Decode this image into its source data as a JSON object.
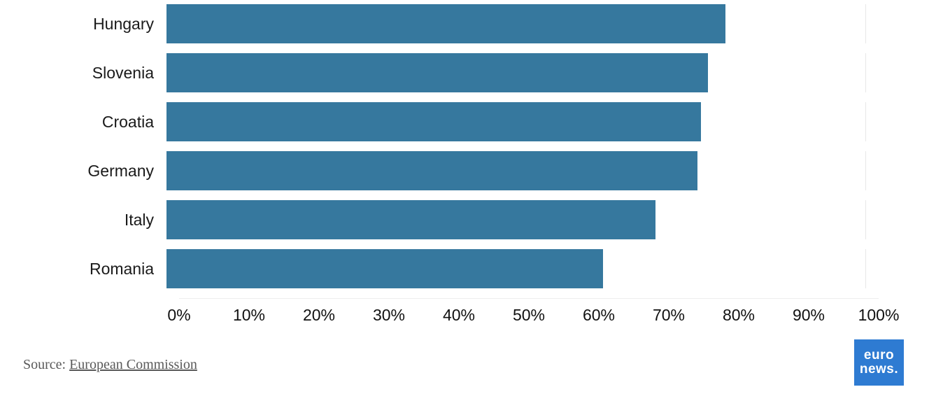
{
  "chart_data": {
    "type": "bar",
    "orientation": "horizontal",
    "title": "",
    "xlabel": "",
    "ylabel": "",
    "categories": [
      "Hungary",
      "Slovenia",
      "Croatia",
      "Germany",
      "Italy",
      "Romania"
    ],
    "values": [
      80,
      77.5,
      76.5,
      76,
      70,
      62.5
    ],
    "value_suffix": "%",
    "xlim": [
      0,
      100
    ],
    "x_ticks": [
      "0%",
      "10%",
      "20%",
      "30%",
      "40%",
      "50%",
      "60%",
      "70%",
      "80%",
      "90%",
      "100%"
    ],
    "bar_color": "#36789e",
    "grid": false,
    "legend": false
  },
  "footer": {
    "source_prefix": "Source: ",
    "source_link": "European Commission"
  },
  "logo": {
    "line1": "euro",
    "line2": "news.",
    "bg_color": "#2e7bd2"
  }
}
